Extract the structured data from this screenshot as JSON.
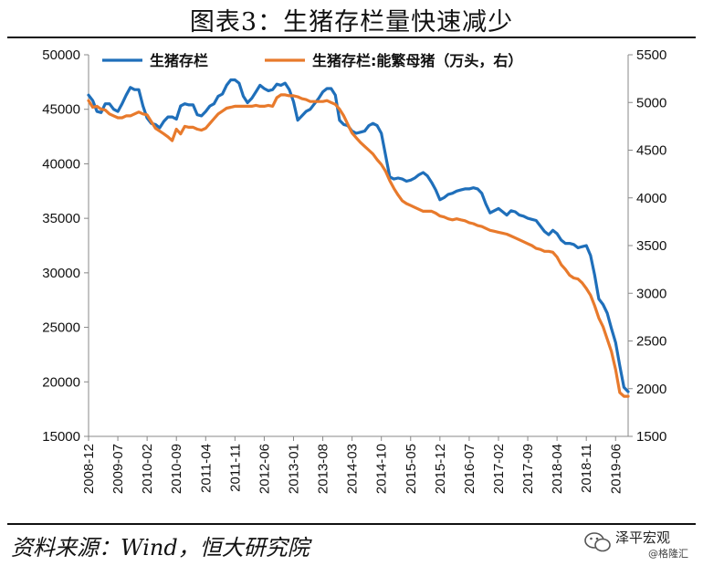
{
  "title": "图表3：生猪存栏量快速减少",
  "source": "资料来源：Wind，恒大研究院",
  "watermark": {
    "main": "泽平宏观",
    "sub": "@格隆汇"
  },
  "chart_data": {
    "type": "line",
    "title": "图表3：生猪存栏量快速减少",
    "xlabel": "",
    "ylabel": "",
    "x_tick_labels": [
      "2008-12",
      "2009-07",
      "2010-02",
      "2010-09",
      "2011-04",
      "2011-11",
      "2012-06",
      "2013-01",
      "2013-08",
      "2014-03",
      "2014-10",
      "2015-05",
      "2015-12",
      "2016-07",
      "2017-02",
      "2017-09",
      "2018-04",
      "2018-11",
      "2019-06"
    ],
    "x_range": [
      "2008-12",
      "2019-09"
    ],
    "y_left": {
      "range": [
        15000,
        50000
      ],
      "ticks": [
        15000,
        20000,
        25000,
        30000,
        35000,
        40000,
        45000,
        50000
      ]
    },
    "y_right": {
      "range": [
        1500,
        5500
      ],
      "ticks": [
        1500,
        2000,
        2500,
        3000,
        3500,
        4000,
        4500,
        5000,
        5500
      ]
    },
    "legend_position": "top",
    "grid": false,
    "series": [
      {
        "name": "生猪存栏",
        "axis": "left",
        "color": "#1f6fba",
        "points": [
          [
            "2008-12",
            46300
          ],
          [
            "2009-01",
            45800
          ],
          [
            "2009-02",
            44800
          ],
          [
            "2009-03",
            44700
          ],
          [
            "2009-04",
            45500
          ],
          [
            "2009-05",
            45500
          ],
          [
            "2009-06",
            45000
          ],
          [
            "2009-07",
            44800
          ],
          [
            "2009-08",
            45500
          ],
          [
            "2009-09",
            46300
          ],
          [
            "2009-10",
            47000
          ],
          [
            "2009-11",
            46800
          ],
          [
            "2009-12",
            46800
          ],
          [
            "2010-01",
            45300
          ],
          [
            "2010-02",
            44200
          ],
          [
            "2010-03",
            43700
          ],
          [
            "2010-04",
            43600
          ],
          [
            "2010-05",
            43300
          ],
          [
            "2010-06",
            43900
          ],
          [
            "2010-07",
            44300
          ],
          [
            "2010-08",
            44300
          ],
          [
            "2010-09",
            44100
          ],
          [
            "2010-10",
            45300
          ],
          [
            "2010-11",
            45500
          ],
          [
            "2010-12",
            45400
          ],
          [
            "2011-01",
            45400
          ],
          [
            "2011-02",
            44500
          ],
          [
            "2011-03",
            44400
          ],
          [
            "2011-04",
            44800
          ],
          [
            "2011-05",
            45300
          ],
          [
            "2011-06",
            45500
          ],
          [
            "2011-07",
            46200
          ],
          [
            "2011-08",
            46400
          ],
          [
            "2011-09",
            47200
          ],
          [
            "2011-10",
            47700
          ],
          [
            "2011-11",
            47700
          ],
          [
            "2011-12",
            47400
          ],
          [
            "2012-01",
            46200
          ],
          [
            "2012-02",
            45600
          ],
          [
            "2012-03",
            46000
          ],
          [
            "2012-04",
            46600
          ],
          [
            "2012-05",
            47200
          ],
          [
            "2012-06",
            46900
          ],
          [
            "2012-07",
            46700
          ],
          [
            "2012-08",
            46800
          ],
          [
            "2012-09",
            47300
          ],
          [
            "2012-10",
            47200
          ],
          [
            "2012-11",
            47400
          ],
          [
            "2012-12",
            46800
          ],
          [
            "2013-01",
            45700
          ],
          [
            "2013-02",
            44000
          ],
          [
            "2013-03",
            44400
          ],
          [
            "2013-04",
            44800
          ],
          [
            "2013-05",
            45000
          ],
          [
            "2013-06",
            45500
          ],
          [
            "2013-07",
            46000
          ],
          [
            "2013-08",
            46600
          ],
          [
            "2013-09",
            46900
          ],
          [
            "2013-10",
            46900
          ],
          [
            "2013-11",
            46300
          ],
          [
            "2013-12",
            44000
          ],
          [
            "2014-01",
            43600
          ],
          [
            "2014-02",
            43500
          ],
          [
            "2014-03",
            43000
          ],
          [
            "2014-04",
            42800
          ],
          [
            "2014-05",
            42900
          ],
          [
            "2014-06",
            43000
          ],
          [
            "2014-07",
            43500
          ],
          [
            "2014-08",
            43700
          ],
          [
            "2014-09",
            43500
          ],
          [
            "2014-10",
            42800
          ],
          [
            "2014-11",
            40800
          ],
          [
            "2014-12",
            38800
          ],
          [
            "2015-01",
            38600
          ],
          [
            "2015-02",
            38700
          ],
          [
            "2015-03",
            38600
          ],
          [
            "2015-04",
            38400
          ],
          [
            "2015-05",
            38500
          ],
          [
            "2015-06",
            38700
          ],
          [
            "2015-07",
            39000
          ],
          [
            "2015-08",
            39200
          ],
          [
            "2015-09",
            38900
          ],
          [
            "2015-10",
            38300
          ],
          [
            "2015-11",
            37600
          ],
          [
            "2015-12",
            36700
          ],
          [
            "2016-01",
            36900
          ],
          [
            "2016-02",
            37200
          ],
          [
            "2016-03",
            37300
          ],
          [
            "2016-04",
            37500
          ],
          [
            "2016-05",
            37600
          ],
          [
            "2016-06",
            37700
          ],
          [
            "2016-07",
            37700
          ],
          [
            "2016-08",
            37800
          ],
          [
            "2016-09",
            37700
          ],
          [
            "2016-10",
            37300
          ],
          [
            "2016-11",
            36300
          ],
          [
            "2016-12",
            35500
          ],
          [
            "2017-01",
            35700
          ],
          [
            "2017-02",
            35900
          ],
          [
            "2017-03",
            35600
          ],
          [
            "2017-04",
            35300
          ],
          [
            "2017-05",
            35700
          ],
          [
            "2017-06",
            35600
          ],
          [
            "2017-07",
            35300
          ],
          [
            "2017-08",
            35200
          ],
          [
            "2017-09",
            35000
          ],
          [
            "2017-10",
            34900
          ],
          [
            "2017-11",
            34800
          ],
          [
            "2017-12",
            34300
          ],
          [
            "2018-01",
            33800
          ],
          [
            "2018-02",
            33500
          ],
          [
            "2018-03",
            33900
          ],
          [
            "2018-04",
            33600
          ],
          [
            "2018-05",
            33000
          ],
          [
            "2018-06",
            32700
          ],
          [
            "2018-07",
            32700
          ],
          [
            "2018-08",
            32600
          ],
          [
            "2018-09",
            32300
          ],
          [
            "2018-10",
            32400
          ],
          [
            "2018-11",
            32500
          ],
          [
            "2018-12",
            31600
          ],
          [
            "2019-01",
            29800
          ],
          [
            "2019-02",
            27600
          ],
          [
            "2019-03",
            27100
          ],
          [
            "2019-04",
            26300
          ],
          [
            "2019-05",
            24900
          ],
          [
            "2019-06",
            23600
          ],
          [
            "2019-07",
            21500
          ],
          [
            "2019-08",
            19500
          ],
          [
            "2019-09",
            19100
          ]
        ]
      },
      {
        "name": "生猪存栏:能繁母猪（万头，右）",
        "axis": "right",
        "color": "#e87a2c",
        "points": [
          [
            "2008-12",
            5020
          ],
          [
            "2009-01",
            4950
          ],
          [
            "2009-02",
            4960
          ],
          [
            "2009-03",
            4930
          ],
          [
            "2009-04",
            4920
          ],
          [
            "2009-05",
            4880
          ],
          [
            "2009-06",
            4860
          ],
          [
            "2009-07",
            4840
          ],
          [
            "2009-08",
            4840
          ],
          [
            "2009-09",
            4860
          ],
          [
            "2009-10",
            4860
          ],
          [
            "2009-11",
            4880
          ],
          [
            "2009-12",
            4900
          ],
          [
            "2010-01",
            4880
          ],
          [
            "2010-02",
            4870
          ],
          [
            "2010-03",
            4800
          ],
          [
            "2010-04",
            4730
          ],
          [
            "2010-05",
            4700
          ],
          [
            "2010-06",
            4670
          ],
          [
            "2010-07",
            4640
          ],
          [
            "2010-08",
            4600
          ],
          [
            "2010-09",
            4720
          ],
          [
            "2010-10",
            4670
          ],
          [
            "2010-11",
            4750
          ],
          [
            "2010-12",
            4740
          ],
          [
            "2011-01",
            4740
          ],
          [
            "2011-02",
            4720
          ],
          [
            "2011-03",
            4710
          ],
          [
            "2011-04",
            4730
          ],
          [
            "2011-05",
            4780
          ],
          [
            "2011-06",
            4830
          ],
          [
            "2011-07",
            4880
          ],
          [
            "2011-08",
            4910
          ],
          [
            "2011-09",
            4940
          ],
          [
            "2011-10",
            4950
          ],
          [
            "2011-11",
            4960
          ],
          [
            "2011-12",
            4960
          ],
          [
            "2012-01",
            4960
          ],
          [
            "2012-02",
            4960
          ],
          [
            "2012-03",
            4960
          ],
          [
            "2012-04",
            4970
          ],
          [
            "2012-05",
            4960
          ],
          [
            "2012-06",
            4960
          ],
          [
            "2012-07",
            4970
          ],
          [
            "2012-08",
            4960
          ],
          [
            "2012-09",
            5050
          ],
          [
            "2012-10",
            5080
          ],
          [
            "2012-11",
            5080
          ],
          [
            "2012-12",
            5070
          ],
          [
            "2013-01",
            5070
          ],
          [
            "2013-02",
            5060
          ],
          [
            "2013-03",
            5040
          ],
          [
            "2013-04",
            5030
          ],
          [
            "2013-05",
            5010
          ],
          [
            "2013-06",
            5010
          ],
          [
            "2013-07",
            5010
          ],
          [
            "2013-08",
            5010
          ],
          [
            "2013-09",
            5020
          ],
          [
            "2013-10",
            5000
          ],
          [
            "2013-11",
            4980
          ],
          [
            "2013-12",
            4930
          ],
          [
            "2014-01",
            4860
          ],
          [
            "2014-02",
            4770
          ],
          [
            "2014-03",
            4680
          ],
          [
            "2014-04",
            4630
          ],
          [
            "2014-05",
            4580
          ],
          [
            "2014-06",
            4540
          ],
          [
            "2014-07",
            4500
          ],
          [
            "2014-08",
            4460
          ],
          [
            "2014-09",
            4400
          ],
          [
            "2014-10",
            4350
          ],
          [
            "2014-11",
            4280
          ],
          [
            "2014-12",
            4180
          ],
          [
            "2015-01",
            4100
          ],
          [
            "2015-02",
            4030
          ],
          [
            "2015-03",
            3970
          ],
          [
            "2015-04",
            3940
          ],
          [
            "2015-05",
            3920
          ],
          [
            "2015-06",
            3900
          ],
          [
            "2015-07",
            3880
          ],
          [
            "2015-08",
            3860
          ],
          [
            "2015-09",
            3860
          ],
          [
            "2015-10",
            3860
          ],
          [
            "2015-11",
            3840
          ],
          [
            "2015-12",
            3810
          ],
          [
            "2016-01",
            3800
          ],
          [
            "2016-02",
            3780
          ],
          [
            "2016-03",
            3770
          ],
          [
            "2016-04",
            3780
          ],
          [
            "2016-05",
            3770
          ],
          [
            "2016-06",
            3760
          ],
          [
            "2016-07",
            3740
          ],
          [
            "2016-08",
            3730
          ],
          [
            "2016-09",
            3710
          ],
          [
            "2016-10",
            3700
          ],
          [
            "2016-11",
            3680
          ],
          [
            "2016-12",
            3660
          ],
          [
            "2017-01",
            3650
          ],
          [
            "2017-02",
            3640
          ],
          [
            "2017-03",
            3630
          ],
          [
            "2017-04",
            3620
          ],
          [
            "2017-05",
            3600
          ],
          [
            "2017-06",
            3580
          ],
          [
            "2017-07",
            3560
          ],
          [
            "2017-08",
            3540
          ],
          [
            "2017-09",
            3520
          ],
          [
            "2017-10",
            3500
          ],
          [
            "2017-11",
            3470
          ],
          [
            "2017-12",
            3460
          ],
          [
            "2018-01",
            3440
          ],
          [
            "2018-02",
            3440
          ],
          [
            "2018-03",
            3430
          ],
          [
            "2018-04",
            3380
          ],
          [
            "2018-05",
            3300
          ],
          [
            "2018-06",
            3250
          ],
          [
            "2018-07",
            3190
          ],
          [
            "2018-08",
            3160
          ],
          [
            "2018-09",
            3150
          ],
          [
            "2018-10",
            3110
          ],
          [
            "2018-11",
            3050
          ],
          [
            "2018-12",
            2980
          ],
          [
            "2019-01",
            2870
          ],
          [
            "2019-02",
            2740
          ],
          [
            "2019-03",
            2650
          ],
          [
            "2019-04",
            2520
          ],
          [
            "2019-05",
            2390
          ],
          [
            "2019-06",
            2200
          ],
          [
            "2019-07",
            1960
          ],
          [
            "2019-08",
            1920
          ],
          [
            "2019-09",
            1920
          ]
        ]
      }
    ]
  }
}
